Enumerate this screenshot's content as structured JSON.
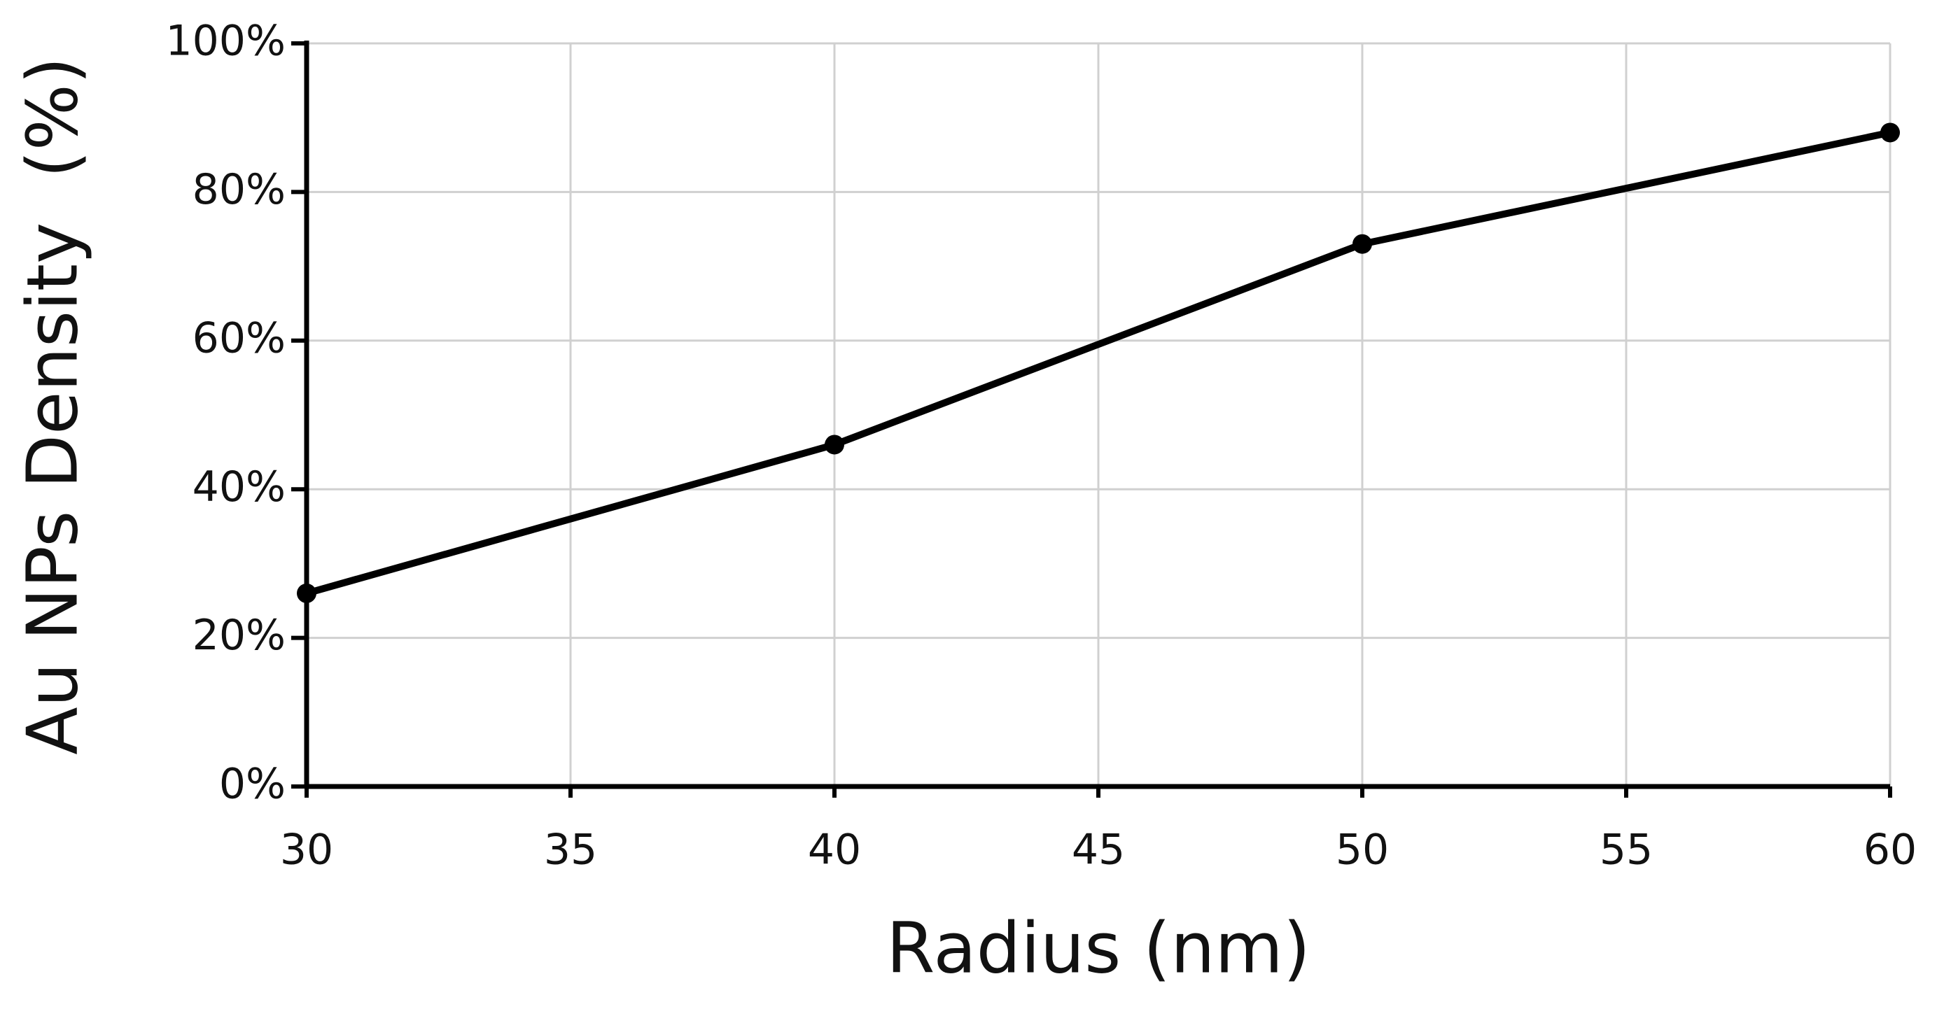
{
  "chart_data": {
    "type": "line",
    "x_label": "Radius (nm)",
    "y_label": "Au NPs Density  (%)",
    "x": [
      30,
      40,
      50,
      60
    ],
    "series": [
      {
        "name": "Au NPs Density",
        "color": "#000000",
        "values": [
          26,
          46,
          73,
          88
        ]
      }
    ],
    "xlim": [
      30,
      60
    ],
    "xticks": [
      30,
      35,
      40,
      45,
      50,
      55,
      60
    ],
    "ylim": [
      0,
      100
    ],
    "yticks": [
      {
        "value": 0,
        "label": "0%"
      },
      {
        "value": 20,
        "label": "20%"
      },
      {
        "value": 40,
        "label": "40%"
      },
      {
        "value": 60,
        "label": "60%"
      },
      {
        "value": 80,
        "label": "80%"
      },
      {
        "value": 100,
        "label": "100%"
      }
    ],
    "grid": true
  }
}
